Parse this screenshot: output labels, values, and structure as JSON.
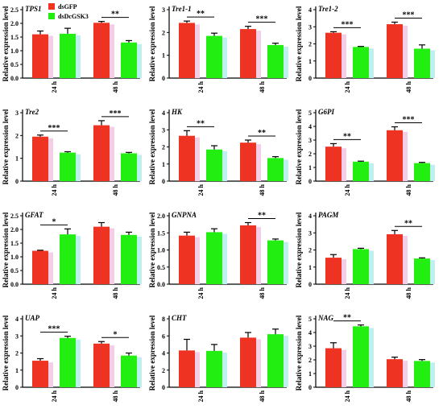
{
  "legend": {
    "items": [
      {
        "label": "dsGFP",
        "color": "#EE3322"
      },
      {
        "label": "dsDcGSK3",
        "color": "#22EE11"
      }
    ]
  },
  "y_axis_label": "Relative expression level",
  "chart_data": [
    {
      "type": "bar",
      "title": "TPS1",
      "categories": [
        "24 h",
        "48 h"
      ],
      "series": [
        {
          "name": "dsGFP",
          "values": [
            1.6,
            2.02
          ],
          "errors": [
            0.12,
            0.05
          ]
        },
        {
          "name": "dsDcGSK3",
          "values": [
            1.62,
            1.3
          ],
          "errors": [
            0.2,
            0.07
          ]
        }
      ],
      "ylim": [
        0,
        2.5
      ],
      "yticks": [
        0.0,
        0.5,
        1.0,
        1.5,
        2.0,
        2.5
      ],
      "significance": [
        {
          "category": 1,
          "label": "**"
        }
      ]
    },
    {
      "type": "bar",
      "title": "Tre1-1",
      "categories": [
        "24 h",
        "48 h"
      ],
      "series": [
        {
          "name": "dsGFP",
          "values": [
            2.42,
            2.15
          ],
          "errors": [
            0.08,
            0.12
          ]
        },
        {
          "name": "dsDcGSK3",
          "values": [
            1.85,
            1.45
          ],
          "errors": [
            0.12,
            0.08
          ]
        }
      ],
      "ylim": [
        0,
        3
      ],
      "yticks": [
        0,
        1,
        2,
        3
      ],
      "significance": [
        {
          "category": 0,
          "label": "**"
        },
        {
          "category": 1,
          "label": "***"
        }
      ]
    },
    {
      "type": "bar",
      "title": "Tre1-2",
      "categories": [
        "24 h",
        "48 h"
      ],
      "series": [
        {
          "name": "dsGFP",
          "values": [
            2.65,
            3.15
          ],
          "errors": [
            0.06,
            0.12
          ]
        },
        {
          "name": "dsDcGSK3",
          "values": [
            1.82,
            1.72
          ],
          "errors": [
            0.03,
            0.22
          ]
        }
      ],
      "ylim": [
        0,
        4
      ],
      "yticks": [
        0,
        1,
        2,
        3,
        4
      ],
      "significance": [
        {
          "category": 0,
          "label": "***"
        },
        {
          "category": 1,
          "label": "***"
        }
      ]
    },
    {
      "type": "bar",
      "title": "Tre2",
      "categories": [
        "24 h",
        "48 h"
      ],
      "series": [
        {
          "name": "dsGFP",
          "values": [
            1.95,
            2.45
          ],
          "errors": [
            0.07,
            0.2
          ]
        },
        {
          "name": "dsDcGSK3",
          "values": [
            1.25,
            1.22
          ],
          "errors": [
            0.04,
            0.04
          ]
        }
      ],
      "ylim": [
        0,
        3
      ],
      "yticks": [
        0,
        1,
        2,
        3
      ],
      "significance": [
        {
          "category": 0,
          "label": "***"
        },
        {
          "category": 1,
          "label": "***"
        }
      ]
    },
    {
      "type": "bar",
      "title": "HK",
      "categories": [
        "24 h",
        "48 h"
      ],
      "series": [
        {
          "name": "dsGFP",
          "values": [
            2.65,
            2.25
          ],
          "errors": [
            0.3,
            0.15
          ]
        },
        {
          "name": "dsDcGSK3",
          "values": [
            1.85,
            1.35
          ],
          "errors": [
            0.22,
            0.08
          ]
        }
      ],
      "ylim": [
        0,
        4
      ],
      "yticks": [
        0,
        1,
        2,
        3,
        4
      ],
      "significance": [
        {
          "category": 0,
          "label": "**"
        },
        {
          "category": 1,
          "label": "**"
        }
      ]
    },
    {
      "type": "bar",
      "title": "G6PI",
      "categories": [
        "24 h",
        "48 h"
      ],
      "series": [
        {
          "name": "dsGFP",
          "values": [
            2.52,
            3.72
          ],
          "errors": [
            0.22,
            0.25
          ]
        },
        {
          "name": "dsDcGSK3",
          "values": [
            1.42,
            1.32
          ],
          "errors": [
            0.04,
            0.05
          ]
        }
      ],
      "ylim": [
        0,
        5
      ],
      "yticks": [
        0,
        1,
        2,
        3,
        4,
        5
      ],
      "significance": [
        {
          "category": 0,
          "label": "**"
        },
        {
          "category": 1,
          "label": "***"
        }
      ]
    },
    {
      "type": "bar",
      "title": "GFAT",
      "categories": [
        "24 h",
        "48 h"
      ],
      "series": [
        {
          "name": "dsGFP",
          "values": [
            1.22,
            2.1
          ],
          "errors": [
            0.02,
            0.15
          ]
        },
        {
          "name": "dsDcGSK3",
          "values": [
            1.82,
            1.8
          ],
          "errors": [
            0.2,
            0.1
          ]
        }
      ],
      "ylim": [
        0,
        2.5
      ],
      "yticks": [
        0.0,
        0.5,
        1.0,
        1.5,
        2.0,
        2.5
      ],
      "significance": [
        {
          "category": 0,
          "label": "*"
        }
      ]
    },
    {
      "type": "bar",
      "title": "GNPNA",
      "categories": [
        "24 h",
        "48 h"
      ],
      "series": [
        {
          "name": "dsGFP",
          "values": [
            1.42,
            1.72
          ],
          "errors": [
            0.1,
            0.08
          ]
        },
        {
          "name": "dsDcGSK3",
          "values": [
            1.52,
            1.28
          ],
          "errors": [
            0.1,
            0.04
          ]
        }
      ],
      "ylim": [
        0,
        2.0
      ],
      "yticks": [
        0.0,
        0.5,
        1.0,
        1.5,
        2.0
      ],
      "significance": [
        {
          "category": 1,
          "label": "**"
        }
      ]
    },
    {
      "type": "bar",
      "title": "PAGM",
      "categories": [
        "24 h",
        "48 h"
      ],
      "series": [
        {
          "name": "dsGFP",
          "values": [
            1.55,
            2.92
          ],
          "errors": [
            0.18,
            0.22
          ]
        },
        {
          "name": "dsDcGSK3",
          "values": [
            2.05,
            1.5
          ],
          "errors": [
            0.05,
            0.04
          ]
        }
      ],
      "ylim": [
        0,
        4
      ],
      "yticks": [
        0,
        1,
        2,
        3,
        4
      ],
      "significance": [
        {
          "category": 1,
          "label": "**"
        }
      ]
    },
    {
      "type": "bar",
      "title": "UAP",
      "categories": [
        "24 h",
        "48 h"
      ],
      "series": [
        {
          "name": "dsGFP",
          "values": [
            1.55,
            2.55
          ],
          "errors": [
            0.12,
            0.12
          ]
        },
        {
          "name": "dsDcGSK3",
          "values": [
            2.88,
            1.85
          ],
          "errors": [
            0.1,
            0.15
          ]
        }
      ],
      "ylim": [
        0,
        4
      ],
      "yticks": [
        0,
        1,
        2,
        3,
        4
      ],
      "significance": [
        {
          "category": 0,
          "label": "***"
        },
        {
          "category": 1,
          "label": "*"
        }
      ]
    },
    {
      "type": "bar",
      "title": "CHT",
      "categories": [
        "24 h",
        "48 h"
      ],
      "series": [
        {
          "name": "dsGFP",
          "values": [
            4.3,
            5.8
          ],
          "errors": [
            1.3,
            0.6
          ]
        },
        {
          "name": "dsDcGSK3",
          "values": [
            4.25,
            6.2
          ],
          "errors": [
            0.75,
            0.6
          ]
        }
      ],
      "ylim": [
        0,
        8
      ],
      "yticks": [
        0,
        2,
        4,
        6,
        8
      ],
      "significance": []
    },
    {
      "type": "bar",
      "title": "NAG",
      "categories": [
        "24 h",
        "48 h"
      ],
      "series": [
        {
          "name": "dsGFP",
          "values": [
            2.85,
            2.05
          ],
          "errors": [
            0.4,
            0.15
          ]
        },
        {
          "name": "dsDcGSK3",
          "values": [
            4.45,
            1.92
          ],
          "errors": [
            0.1,
            0.1
          ]
        }
      ],
      "ylim": [
        0,
        5
      ],
      "yticks": [
        0,
        1,
        2,
        3,
        4,
        5
      ],
      "significance": [
        {
          "category": 0,
          "label": "**"
        }
      ]
    }
  ]
}
